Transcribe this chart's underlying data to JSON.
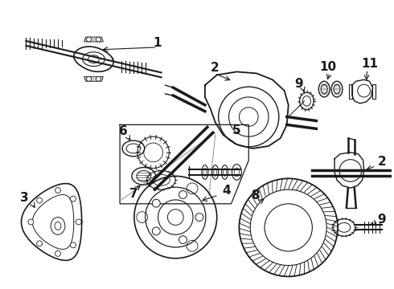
{
  "background_color": "#ffffff",
  "line_color": "#1a1a1a",
  "fig_width": 4.9,
  "fig_height": 3.6,
  "dpi": 100,
  "font_size": 10,
  "font_size_large": 11
}
